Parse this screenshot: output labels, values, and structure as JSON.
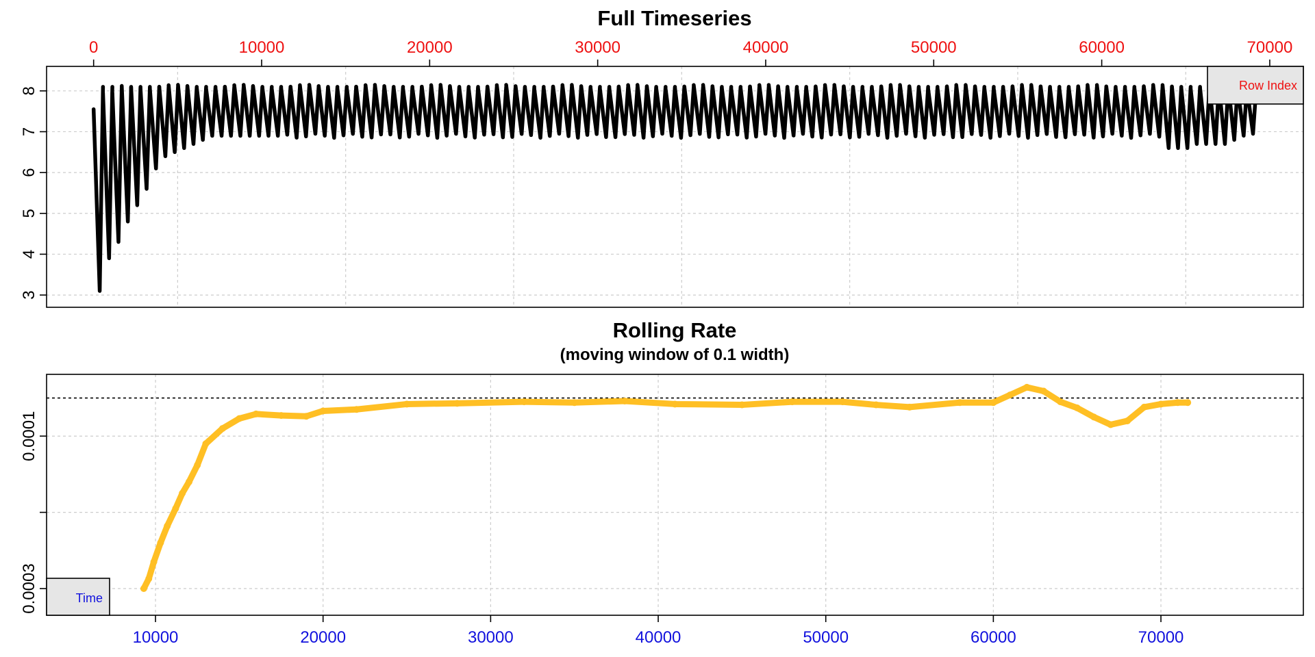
{
  "colors": {
    "series1": "#000000",
    "series2": "#ffbf24",
    "top_axis": "#ee1111",
    "bottom_axis": "#1111dd",
    "refline": "#000000"
  },
  "chart_data": [
    {
      "type": "scatter",
      "title": "Full Timeseries",
      "x_axis_position": "top",
      "xlim": [
        -2800,
        72000
      ],
      "ylim": [
        2.7,
        8.6
      ],
      "x_ticks": [
        0,
        10000,
        20000,
        30000,
        40000,
        50000,
        60000,
        70000
      ],
      "x_tick_labels": [
        "0",
        "10000",
        "20000",
        "30000",
        "40000",
        "50000",
        "60000",
        "70000"
      ],
      "y_ticks": [
        3,
        4,
        5,
        6,
        7,
        8
      ],
      "y_tick_labels": [
        "3",
        "4",
        "5",
        "6",
        "7",
        "8"
      ],
      "legend": {
        "label": "Row Index",
        "placement": "top-right"
      },
      "grid": true,
      "series": [
        {
          "x_range": [
            0,
            69200
          ],
          "cycles": 124,
          "peak": 8.1,
          "cycle_minima": [
            3.1,
            3.9,
            4.3,
            4.8,
            5.2,
            5.6,
            6.1,
            6.4,
            6.5,
            6.6,
            6.7,
            6.8,
            6.9,
            6.9,
            6.9,
            6.9,
            6.9,
            6.9,
            6.9,
            6.9
          ],
          "late_minima": [
            6.6,
            6.6,
            6.6,
            6.7,
            6.7,
            6.7,
            6.7,
            6.8
          ]
        }
      ]
    },
    {
      "type": "line",
      "title": "Rolling Rate",
      "subtitle": "(moving window of 0.1 width)",
      "xlim": [
        3500,
        78500
      ],
      "ylim": [
        0.000335,
        1.9e-05
      ],
      "y_reversed": true,
      "x_ticks": [
        10000,
        20000,
        30000,
        40000,
        50000,
        60000,
        70000
      ],
      "x_tick_labels": [
        "10000",
        "20000",
        "30000",
        "40000",
        "50000",
        "60000",
        "70000"
      ],
      "y_ticks": [
        0.0003,
        0.0002,
        0.0001
      ],
      "y_tick_labels": [
        "0.0003",
        "",
        "0.0001"
      ],
      "reference_line": 5e-05,
      "legend": {
        "label": "Time",
        "placement": "bottom-left"
      },
      "grid": true,
      "series": [
        {
          "x": [
            9300,
            9600,
            9900,
            10300,
            10700,
            11200,
            11600,
            12000,
            12500,
            13000,
            14000,
            15000,
            16000,
            17500,
            19000,
            20000,
            22000,
            25000,
            28000,
            32000,
            35000,
            38000,
            41000,
            45000,
            48000,
            51000,
            53000,
            55000,
            58000,
            60000,
            61000,
            62000,
            63000,
            64000,
            65000,
            66000,
            67000,
            68000,
            69000,
            70000,
            71000,
            71600
          ],
          "y": [
            0.0003,
            0.000287,
            0.000265,
            0.00024,
            0.000218,
            0.000195,
            0.000175,
            0.00016,
            0.000138,
            0.00011,
            9e-05,
            7.7e-05,
            7.1e-05,
            7.3e-05,
            7.4e-05,
            6.7e-05,
            6.5e-05,
            5.8e-05,
            5.7e-05,
            5.5e-05,
            5.6e-05,
            5.4e-05,
            5.8e-05,
            5.9e-05,
            5.5e-05,
            5.5e-05,
            5.9e-05,
            6.2e-05,
            5.6e-05,
            5.6e-05,
            4.6e-05,
            3.6e-05,
            4.1e-05,
            5.5e-05,
            6.3e-05,
            7.5e-05,
            8.5e-05,
            8e-05,
            6.2e-05,
            5.8e-05,
            5.6e-05,
            5.6e-05
          ]
        }
      ]
    }
  ]
}
